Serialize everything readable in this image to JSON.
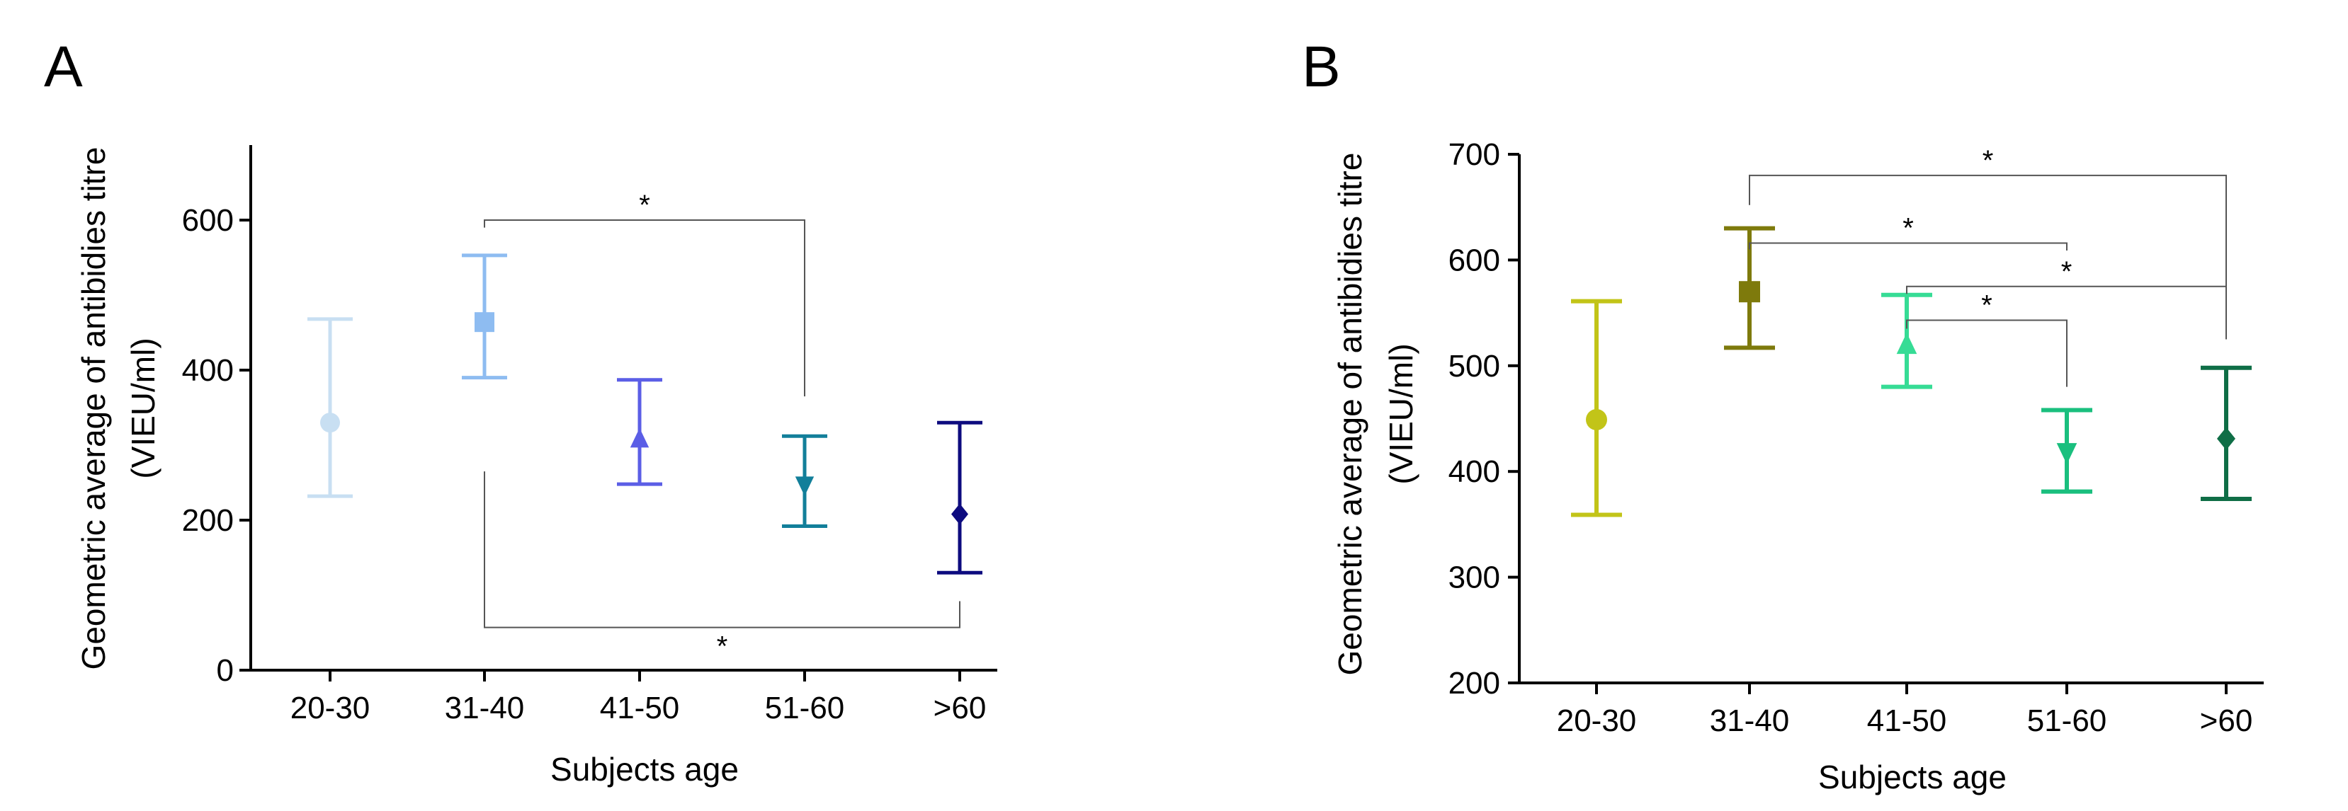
{
  "chart_data": [
    {
      "panel": "A",
      "type": "scatter",
      "title": "",
      "xlabel": "Subjects age",
      "ylabel_line1": "Geometric average of antibidies titre",
      "ylabel_line2": "(VIEU/ml)",
      "categories": [
        "20-30",
        "31-40",
        "41-50",
        "51-60",
        ">60"
      ],
      "ylim": [
        0,
        700
      ],
      "yticks": [
        0,
        200,
        400,
        600
      ],
      "ytick_labels": [
        "0",
        "200",
        "400",
        "600"
      ],
      "points": [
        {
          "category": "20-30",
          "mean": 330,
          "upper": 468,
          "lower": 232,
          "marker": "circle",
          "color": "#c8dff2"
        },
        {
          "category": "31-40",
          "mean": 464,
          "upper": 553,
          "lower": 390,
          "marker": "square",
          "color": "#8ebcf1"
        },
        {
          "category": "41-50",
          "mean": 307,
          "upper": 387,
          "lower": 248,
          "marker": "triangle-up",
          "color": "#5b5ee6"
        },
        {
          "category": "51-60",
          "mean": 248,
          "upper": 312,
          "lower": 192,
          "marker": "triangle-down",
          "color": "#127f9a"
        },
        {
          "category": ">60",
          "mean": 208,
          "upper": 330,
          "lower": 130,
          "marker": "diamond",
          "color": "#0d0b7f"
        }
      ],
      "significance": [
        {
          "from": "31-40",
          "to": "51-60",
          "label": "*",
          "side": "above",
          "y": 600,
          "drop_left": 590,
          "drop_right": 365
        },
        {
          "from": "31-40",
          "to": ">60",
          "label": "*",
          "side": "below",
          "y": 57,
          "rise_left": 265,
          "rise_right": 92
        }
      ]
    },
    {
      "panel": "B",
      "type": "scatter",
      "title": "",
      "xlabel": "Subjects age",
      "ylabel_line1": "Geometric average of antibidies titre",
      "ylabel_line2": "(VIEU/ml)",
      "categories": [
        "20-30",
        "31-40",
        "41-50",
        "51-60",
        ">60"
      ],
      "ylim": [
        200,
        700
      ],
      "yticks": [
        200,
        300,
        400,
        500,
        600,
        700
      ],
      "ytick_labels": [
        "200",
        "300",
        "400",
        "500",
        "600",
        "700"
      ],
      "points": [
        {
          "category": "20-30",
          "mean": 449,
          "upper": 561,
          "lower": 359,
          "marker": "circle",
          "color": "#c2c418"
        },
        {
          "category": "31-40",
          "mean": 570,
          "upper": 630,
          "lower": 517,
          "marker": "square",
          "color": "#7e7a0c"
        },
        {
          "category": "41-50",
          "mean": 519,
          "upper": 567,
          "lower": 480,
          "marker": "triangle-up",
          "color": "#36dc95"
        },
        {
          "category": "51-60",
          "mean": 419,
          "upper": 458,
          "lower": 381,
          "marker": "triangle-down",
          "color": "#1abf7e"
        },
        {
          "category": ">60",
          "mean": 431,
          "upper": 498,
          "lower": 374,
          "marker": "diamond",
          "color": "#0f6e46"
        }
      ],
      "significance": [
        {
          "from": "31-40",
          "to": ">60",
          "label": "*",
          "side": "above",
          "y": 680,
          "drop_left": 652,
          "drop_right": 525
        },
        {
          "from": "31-40",
          "to": "51-60",
          "label": "*",
          "side": "above",
          "y": 616,
          "drop_left": 610,
          "drop_right": 609
        },
        {
          "from": "41-50",
          "to": ">60",
          "label": "*",
          "side": "above",
          "y": 575,
          "drop_left": 568,
          "drop_right": 525
        },
        {
          "from": "41-50",
          "to": "51-60",
          "label": "*",
          "side": "above",
          "y": 543,
          "drop_left": 535,
          "drop_right": 480
        }
      ]
    }
  ]
}
